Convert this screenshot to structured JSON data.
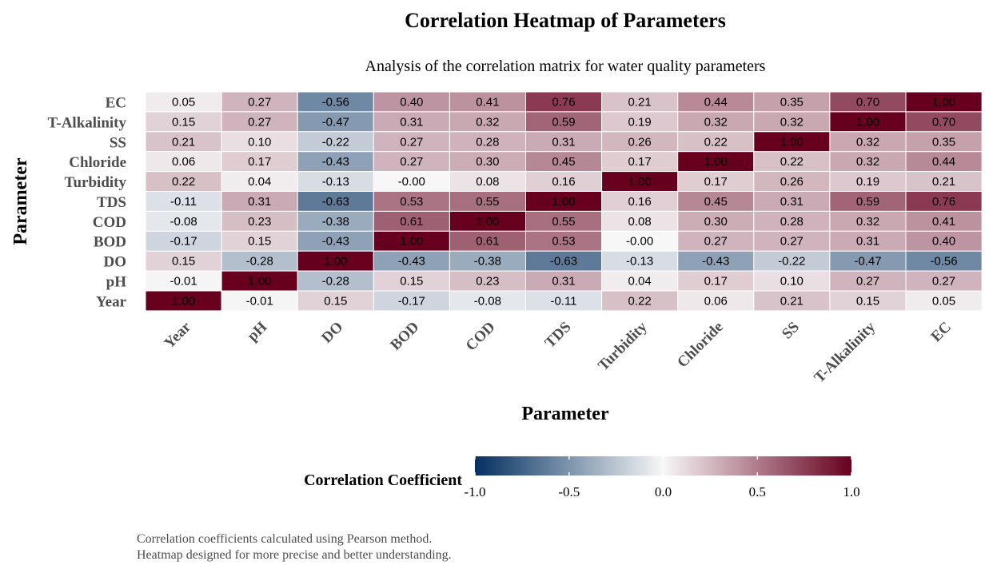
{
  "chart_data": {
    "type": "heatmap",
    "title": "Correlation Heatmap of Parameters",
    "subtitle": "Analysis of the correlation matrix for water quality parameters",
    "xlabel": "Parameter",
    "ylabel": "Parameter",
    "x_categories": [
      "Year",
      "pH",
      "DO",
      "BOD",
      "COD",
      "TDS",
      "Turbidity",
      "Chloride",
      "SS",
      "T-Alkalinity",
      "EC"
    ],
    "y_categories_top_to_bottom": [
      "EC",
      "T-Alkalinity",
      "SS",
      "Chloride",
      "Turbidity",
      "TDS",
      "COD",
      "BOD",
      "DO",
      "pH",
      "Year"
    ],
    "values": [
      [
        "0.05",
        "0.27",
        "-0.56",
        "0.40",
        "0.41",
        "0.76",
        "0.21",
        "0.44",
        "0.35",
        "0.70",
        "1.00"
      ],
      [
        "0.15",
        "0.27",
        "-0.47",
        "0.31",
        "0.32",
        "0.59",
        "0.19",
        "0.32",
        "0.32",
        "1.00",
        "0.70"
      ],
      [
        "0.21",
        "0.10",
        "-0.22",
        "0.27",
        "0.28",
        "0.31",
        "0.26",
        "0.22",
        "1.00",
        "0.32",
        "0.35"
      ],
      [
        "0.06",
        "0.17",
        "-0.43",
        "0.27",
        "0.30",
        "0.45",
        "0.17",
        "1.00",
        "0.22",
        "0.32",
        "0.44"
      ],
      [
        "0.22",
        "0.04",
        "-0.13",
        "-0.00",
        "0.08",
        "0.16",
        "1.00",
        "0.17",
        "0.26",
        "0.19",
        "0.21"
      ],
      [
        "-0.11",
        "0.31",
        "-0.63",
        "0.53",
        "0.55",
        "1.00",
        "0.16",
        "0.45",
        "0.31",
        "0.59",
        "0.76"
      ],
      [
        "-0.08",
        "0.23",
        "-0.38",
        "0.61",
        "1.00",
        "0.55",
        "0.08",
        "0.30",
        "0.28",
        "0.32",
        "0.41"
      ],
      [
        "-0.17",
        "0.15",
        "-0.43",
        "1.00",
        "0.61",
        "0.53",
        "-0.00",
        "0.27",
        "0.27",
        "0.31",
        "0.40"
      ],
      [
        "0.15",
        "-0.28",
        "1.00",
        "-0.43",
        "-0.38",
        "-0.63",
        "-0.13",
        "-0.43",
        "-0.22",
        "-0.47",
        "-0.56"
      ],
      [
        "-0.01",
        "1.00",
        "-0.28",
        "0.15",
        "0.23",
        "0.31",
        "0.04",
        "0.17",
        "0.10",
        "0.27",
        "0.27"
      ],
      [
        "1.00",
        "-0.01",
        "0.15",
        "-0.17",
        "-0.08",
        "-0.11",
        "0.22",
        "0.06",
        "0.21",
        "0.15",
        "0.05"
      ]
    ],
    "color_scale": {
      "title": "Correlation Coefficient",
      "min": -1.0,
      "max": 1.0,
      "low_color": "#053061",
      "mid_color": "#f7f7f7",
      "high_color": "#67001f",
      "ticks": [
        "-1.0",
        "-0.5",
        "0.0",
        "0.5",
        "1.0"
      ]
    },
    "legend_position": "bottom",
    "grid": false,
    "caption_lines": [
      "Correlation coefficients calculated using Pearson method.",
      "Heatmap designed for more precise and better understanding."
    ]
  }
}
